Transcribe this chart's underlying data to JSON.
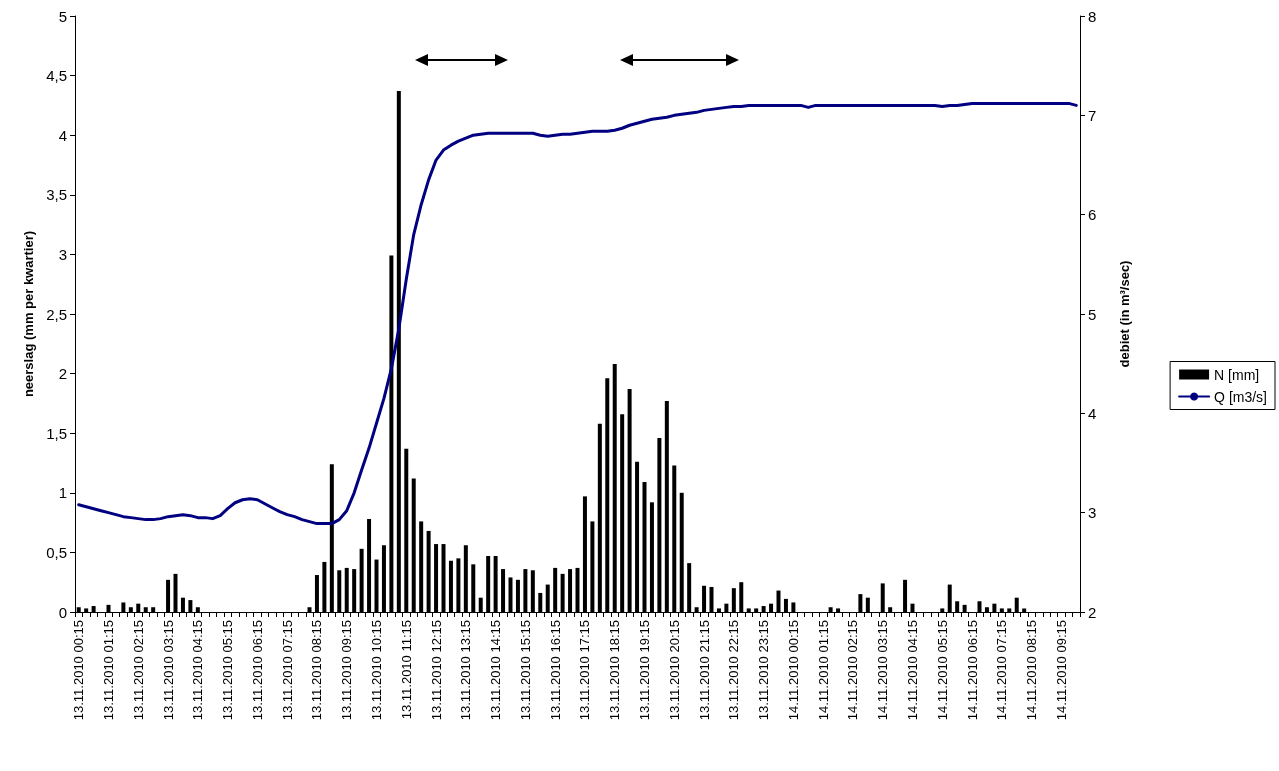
{
  "chart_data": {
    "type": "bar",
    "ylabel": "neerslag (mm per kwartier)",
    "y2label": "debiet (in m³/sec)",
    "categories": [
      "13.11.2010 00:15",
      null,
      null,
      null,
      "13.11.2010 01:15",
      null,
      null,
      null,
      "13.11.2010 02:15",
      null,
      null,
      null,
      "13.11.2010 03:15",
      null,
      null,
      null,
      "13.11.2010 04:15",
      null,
      null,
      null,
      "13.11.2010 05:15",
      null,
      null,
      null,
      "13.11.2010 06:15",
      null,
      null,
      null,
      "13.11.2010 07:15",
      null,
      null,
      null,
      "13.11.2010 08:15",
      null,
      null,
      null,
      "13.11.2010 09:15",
      null,
      null,
      null,
      "13.11.2010 10:15",
      null,
      null,
      null,
      "13.11.2010 11:15",
      null,
      null,
      null,
      "13.11.2010 12:15",
      null,
      null,
      null,
      "13.11.2010 13:15",
      null,
      null,
      null,
      "13.11.2010 14:15",
      null,
      null,
      null,
      "13.11.2010 15:15",
      null,
      null,
      null,
      "13.11.2010 16:15",
      null,
      null,
      null,
      "13.11.2010 17:15",
      null,
      null,
      null,
      "13.11.2010 18:15",
      null,
      null,
      null,
      "13.11.2010 19:15",
      null,
      null,
      null,
      "13.11.2010 20:15",
      null,
      null,
      null,
      "13.11.2010 21:15",
      null,
      null,
      null,
      "13.11.2010 22:15",
      null,
      null,
      null,
      "13.11.2010 23:15",
      null,
      null,
      null,
      "14.11.2010 00:15",
      null,
      null,
      null,
      "14.11.2010 01:15",
      null,
      null,
      null,
      "14.11.2010 02:15",
      null,
      null,
      null,
      "14.11.2010 03:15",
      null,
      null,
      null,
      "14.11.2010 04:15",
      null,
      null,
      null,
      "14.11.2010 05:15",
      null,
      null,
      null,
      "14.11.2010 06:15",
      null,
      null,
      null,
      "14.11.2010 07:15",
      null,
      null,
      null,
      "14.11.2010 08:15",
      null,
      null,
      null,
      "14.11.2010 09:15",
      null,
      null
    ],
    "series": [
      {
        "name": "N [mm]",
        "color": "#000000",
        "values": [
          0.04,
          0.03,
          0.05,
          0,
          0.06,
          0,
          0.08,
          0.04,
          0.07,
          0.04,
          0.04,
          0,
          0.27,
          0.32,
          0.12,
          0.1,
          0.04,
          0,
          0,
          0,
          0,
          0,
          0,
          0,
          0,
          0,
          0,
          0,
          0,
          0,
          0,
          0.04,
          0.31,
          0.42,
          1.24,
          0.35,
          0.37,
          0.36,
          0.53,
          0.78,
          0.44,
          0.56,
          2.99,
          4.37,
          1.37,
          1.12,
          0.76,
          0.68,
          0.57,
          0.57,
          0.43,
          0.45,
          0.56,
          0.4,
          0.12,
          0.47,
          0.47,
          0.36,
          0.29,
          0.27,
          0.36,
          0.35,
          0.16,
          0.23,
          0.37,
          0.32,
          0.36,
          0.37,
          0.97,
          0.76,
          1.58,
          1.96,
          2.08,
          1.66,
          1.87,
          1.26,
          1.09,
          0.92,
          1.46,
          1.77,
          1.23,
          1.0,
          0.41,
          0.04,
          0.22,
          0.21,
          0.03,
          0.07,
          0.2,
          0.25,
          0.03,
          0.03,
          0.05,
          0.07,
          0.18,
          0.11,
          0.08,
          0,
          0,
          0,
          0,
          0.04,
          0.03,
          0,
          0,
          0.15,
          0.12,
          0,
          0.24,
          0.04,
          0,
          0.27,
          0.07,
          0,
          0,
          0,
          0.03,
          0.23,
          0.09,
          0.06,
          0,
          0.09,
          0.04,
          0.07,
          0.03,
          0.03,
          0.12,
          0.03,
          0,
          0,
          0,
          0,
          0,
          0,
          0
        ]
      },
      {
        "name": "Q [m3/s]",
        "type": "line",
        "axis": "y2",
        "color": "#000080",
        "values": [
          3.08,
          3.06,
          3.04,
          3.02,
          3.0,
          2.98,
          2.96,
          2.95,
          2.94,
          2.93,
          2.93,
          2.94,
          2.96,
          2.97,
          2.98,
          2.97,
          2.95,
          2.95,
          2.94,
          2.97,
          3.04,
          3.1,
          3.13,
          3.14,
          3.13,
          3.09,
          3.05,
          3.01,
          2.98,
          2.96,
          2.93,
          2.91,
          2.89,
          2.89,
          2.89,
          2.93,
          3.02,
          3.2,
          3.43,
          3.65,
          3.9,
          4.15,
          4.45,
          4.85,
          5.35,
          5.8,
          6.1,
          6.35,
          6.55,
          6.65,
          6.7,
          6.74,
          6.77,
          6.8,
          6.81,
          6.82,
          6.82,
          6.82,
          6.82,
          6.82,
          6.82,
          6.82,
          6.8,
          6.79,
          6.8,
          6.81,
          6.81,
          6.82,
          6.83,
          6.84,
          6.84,
          6.84,
          6.85,
          6.87,
          6.9,
          6.92,
          6.94,
          6.96,
          6.97,
          6.98,
          7.0,
          7.01,
          7.02,
          7.03,
          7.05,
          7.06,
          7.07,
          7.08,
          7.09,
          7.09,
          7.1,
          7.1,
          7.1,
          7.1,
          7.1,
          7.1,
          7.1,
          7.1,
          7.08,
          7.1,
          7.1,
          7.1,
          7.1,
          7.1,
          7.1,
          7.1,
          7.1,
          7.1,
          7.1,
          7.1,
          7.1,
          7.1,
          7.1,
          7.1,
          7.1,
          7.1,
          7.09,
          7.1,
          7.1,
          7.11,
          7.12,
          7.12,
          7.12,
          7.12,
          7.12,
          7.12,
          7.12,
          7.12,
          7.12,
          7.12,
          7.12,
          7.12,
          7.12,
          7.12,
          7.1
        ]
      }
    ],
    "ylim": [
      0,
      5
    ],
    "yticks": [
      0,
      {
        "value": 0.5,
        "label": "0,5"
      },
      1,
      {
        "value": 1.5,
        "label": "1,5"
      },
      2,
      {
        "value": 2.5,
        "label": "2,5"
      },
      3,
      {
        "value": 3.5,
        "label": "3,5"
      },
      4,
      {
        "value": 4.5,
        "label": "4,5"
      },
      5
    ],
    "y2lim": [
      2,
      8
    ],
    "y2ticks": [
      2,
      3,
      4,
      5,
      6,
      7,
      8
    ],
    "grid": false,
    "legend": "right",
    "marker": "none",
    "line_style": "solid"
  }
}
